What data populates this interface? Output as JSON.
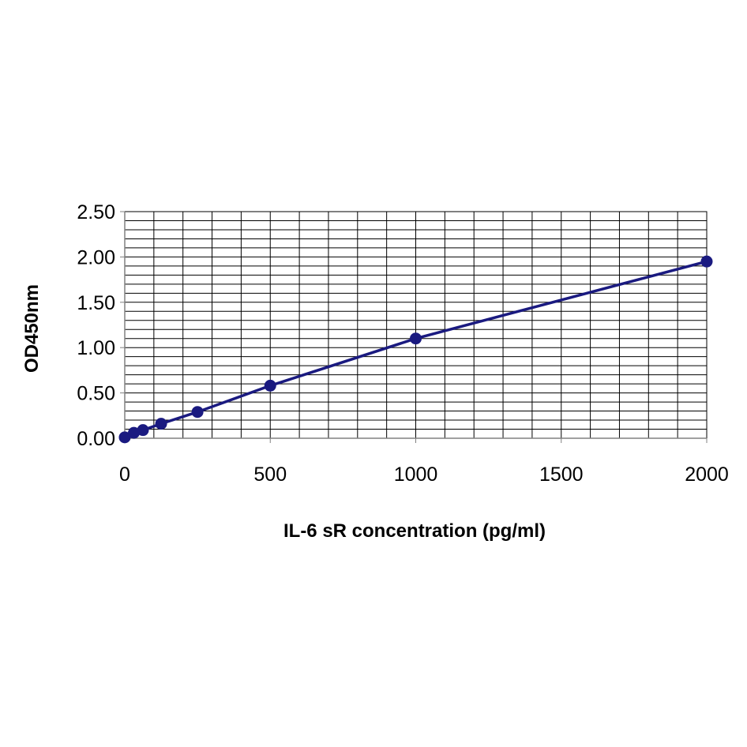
{
  "chart_data": {
    "type": "line",
    "title": "",
    "xlabel": "IL-6 sR concentration (pg/ml)",
    "ylabel": "OD450nm",
    "xlim": [
      0,
      2000
    ],
    "ylim": [
      0,
      2.5
    ],
    "x_ticks": [
      "0",
      "500",
      "1000",
      "1500",
      "2000"
    ],
    "y_ticks": [
      "0.00",
      "0.50",
      "1.00",
      "1.50",
      "2.00",
      "2.50"
    ],
    "grid": true,
    "legend": "none",
    "series": [
      {
        "x": [
          0,
          31.25,
          62.5,
          125,
          250,
          500,
          1000,
          2000
        ],
        "y": [
          0.01,
          0.06,
          0.09,
          0.16,
          0.29,
          0.58,
          1.1,
          1.95
        ]
      }
    ],
    "colors": {
      "series": "#1a1a80",
      "grid": "#000000",
      "axis": "#808080"
    }
  }
}
